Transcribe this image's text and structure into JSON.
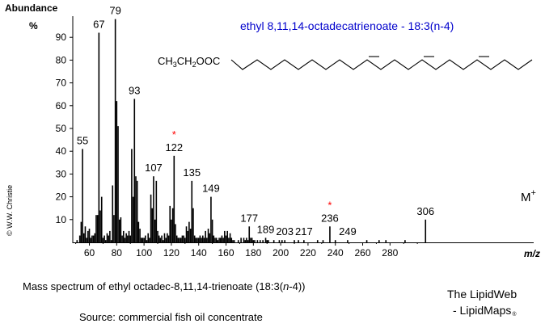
{
  "chart_data": {
    "type": "bar",
    "title": "ethyl 8,11,14-octadecatrienoate - 18:3(n-4)",
    "ylabel": "Abundance",
    "y_unit": "%",
    "xlabel": "m/z",
    "xlim": [
      45,
      310
    ],
    "ylim": [
      0,
      100
    ],
    "x_ticks": [
      60,
      80,
      100,
      120,
      140,
      160,
      180,
      200,
      220,
      240,
      260,
      280
    ],
    "y_ticks": [
      10,
      20,
      30,
      40,
      50,
      60,
      70,
      80,
      90
    ],
    "structure_label": "CH3CH2OOC",
    "molecular_ion_label": "M+",
    "peaks": [
      {
        "mz": 51,
        "y": 1
      },
      {
        "mz": 53,
        "y": 3
      },
      {
        "mz": 54,
        "y": 9
      },
      {
        "mz": 55,
        "y": 41,
        "label": "55"
      },
      {
        "mz": 56,
        "y": 4
      },
      {
        "mz": 57,
        "y": 7
      },
      {
        "mz": 58,
        "y": 2
      },
      {
        "mz": 59,
        "y": 5
      },
      {
        "mz": 60,
        "y": 6
      },
      {
        "mz": 61,
        "y": 2
      },
      {
        "mz": 62,
        "y": 3
      },
      {
        "mz": 63,
        "y": 3
      },
      {
        "mz": 64,
        "y": 4
      },
      {
        "mz": 65,
        "y": 12
      },
      {
        "mz": 66,
        "y": 12
      },
      {
        "mz": 67,
        "y": 92,
        "label": "67"
      },
      {
        "mz": 68,
        "y": 14
      },
      {
        "mz": 69,
        "y": 20
      },
      {
        "mz": 70,
        "y": 2
      },
      {
        "mz": 71,
        "y": 3
      },
      {
        "mz": 72,
        "y": 1
      },
      {
        "mz": 73,
        "y": 4
      },
      {
        "mz": 74,
        "y": 3
      },
      {
        "mz": 75,
        "y": 5
      },
      {
        "mz": 76,
        "y": 1
      },
      {
        "mz": 77,
        "y": 25
      },
      {
        "mz": 78,
        "y": 12
      },
      {
        "mz": 79,
        "y": 98,
        "label": "79"
      },
      {
        "mz": 80,
        "y": 62
      },
      {
        "mz": 81,
        "y": 51
      },
      {
        "mz": 82,
        "y": 10
      },
      {
        "mz": 83,
        "y": 11
      },
      {
        "mz": 84,
        "y": 3
      },
      {
        "mz": 85,
        "y": 5
      },
      {
        "mz": 86,
        "y": 2
      },
      {
        "mz": 87,
        "y": 4
      },
      {
        "mz": 88,
        "y": 3
      },
      {
        "mz": 89,
        "y": 5
      },
      {
        "mz": 90,
        "y": 3
      },
      {
        "mz": 91,
        "y": 41
      },
      {
        "mz": 92,
        "y": 20
      },
      {
        "mz": 93,
        "y": 63,
        "label": "93"
      },
      {
        "mz": 94,
        "y": 29
      },
      {
        "mz": 95,
        "y": 27
      },
      {
        "mz": 96,
        "y": 9
      },
      {
        "mz": 97,
        "y": 6
      },
      {
        "mz": 98,
        "y": 2
      },
      {
        "mz": 99,
        "y": 2
      },
      {
        "mz": 100,
        "y": 2
      },
      {
        "mz": 101,
        "y": 3
      },
      {
        "mz": 102,
        "y": 1
      },
      {
        "mz": 103,
        "y": 4
      },
      {
        "mz": 104,
        "y": 2
      },
      {
        "mz": 105,
        "y": 21
      },
      {
        "mz": 106,
        "y": 15
      },
      {
        "mz": 107,
        "y": 29,
        "label": "107"
      },
      {
        "mz": 108,
        "y": 10
      },
      {
        "mz": 109,
        "y": 27
      },
      {
        "mz": 110,
        "y": 5
      },
      {
        "mz": 111,
        "y": 3
      },
      {
        "mz": 112,
        "y": 2
      },
      {
        "mz": 113,
        "y": 3
      },
      {
        "mz": 114,
        "y": 1
      },
      {
        "mz": 115,
        "y": 4
      },
      {
        "mz": 116,
        "y": 2
      },
      {
        "mz": 117,
        "y": 4
      },
      {
        "mz": 118,
        "y": 3
      },
      {
        "mz": 119,
        "y": 16
      },
      {
        "mz": 120,
        "y": 10
      },
      {
        "mz": 121,
        "y": 15
      },
      {
        "mz": 122,
        "y": 38,
        "label": "122",
        "marked": true
      },
      {
        "mz": 123,
        "y": 8
      },
      {
        "mz": 124,
        "y": 3
      },
      {
        "mz": 125,
        "y": 2
      },
      {
        "mz": 126,
        "y": 2
      },
      {
        "mz": 127,
        "y": 2
      },
      {
        "mz": 128,
        "y": 3
      },
      {
        "mz": 129,
        "y": 3
      },
      {
        "mz": 130,
        "y": 2
      },
      {
        "mz": 131,
        "y": 7
      },
      {
        "mz": 132,
        "y": 5
      },
      {
        "mz": 133,
        "y": 9
      },
      {
        "mz": 134,
        "y": 6
      },
      {
        "mz": 135,
        "y": 27,
        "label": "135"
      },
      {
        "mz": 136,
        "y": 15
      },
      {
        "mz": 137,
        "y": 3
      },
      {
        "mz": 138,
        "y": 2
      },
      {
        "mz": 139,
        "y": 2
      },
      {
        "mz": 140,
        "y": 2
      },
      {
        "mz": 141,
        "y": 3
      },
      {
        "mz": 142,
        "y": 2
      },
      {
        "mz": 143,
        "y": 3
      },
      {
        "mz": 144,
        "y": 2
      },
      {
        "mz": 145,
        "y": 5
      },
      {
        "mz": 146,
        "y": 2
      },
      {
        "mz": 147,
        "y": 6
      },
      {
        "mz": 148,
        "y": 4
      },
      {
        "mz": 149,
        "y": 20,
        "label": "149"
      },
      {
        "mz": 150,
        "y": 10
      },
      {
        "mz": 151,
        "y": 3
      },
      {
        "mz": 152,
        "y": 2
      },
      {
        "mz": 153,
        "y": 2
      },
      {
        "mz": 154,
        "y": 1
      },
      {
        "mz": 155,
        "y": 2
      },
      {
        "mz": 156,
        "y": 2
      },
      {
        "mz": 157,
        "y": 3
      },
      {
        "mz": 158,
        "y": 2
      },
      {
        "mz": 159,
        "y": 5
      },
      {
        "mz": 160,
        "y": 3
      },
      {
        "mz": 161,
        "y": 5
      },
      {
        "mz": 162,
        "y": 2
      },
      {
        "mz": 163,
        "y": 4
      },
      {
        "mz": 164,
        "y": 2
      },
      {
        "mz": 165,
        "y": 1
      },
      {
        "mz": 166,
        "y": 1
      },
      {
        "mz": 169,
        "y": 1
      },
      {
        "mz": 171,
        "y": 2
      },
      {
        "mz": 173,
        "y": 2
      },
      {
        "mz": 174,
        "y": 1
      },
      {
        "mz": 175,
        "y": 2
      },
      {
        "mz": 176,
        "y": 1
      },
      {
        "mz": 177,
        "y": 7,
        "label": "177"
      },
      {
        "mz": 178,
        "y": 2
      },
      {
        "mz": 179,
        "y": 2
      },
      {
        "mz": 180,
        "y": 1
      },
      {
        "mz": 181,
        "y": 1
      },
      {
        "mz": 183,
        "y": 1
      },
      {
        "mz": 185,
        "y": 1
      },
      {
        "mz": 187,
        "y": 1
      },
      {
        "mz": 189,
        "y": 2,
        "label": "189"
      },
      {
        "mz": 190,
        "y": 1
      },
      {
        "mz": 191,
        "y": 1
      },
      {
        "mz": 195,
        "y": 1
      },
      {
        "mz": 199,
        "y": 1
      },
      {
        "mz": 201,
        "y": 1
      },
      {
        "mz": 203,
        "y": 1,
        "label": "203"
      },
      {
        "mz": 210,
        "y": 1
      },
      {
        "mz": 213,
        "y": 1
      },
      {
        "mz": 217,
        "y": 1,
        "label": "217"
      },
      {
        "mz": 227,
        "y": 1
      },
      {
        "mz": 231,
        "y": 1
      },
      {
        "mz": 236,
        "y": 7,
        "label": "236",
        "marked": true
      },
      {
        "mz": 240,
        "y": 1
      },
      {
        "mz": 249,
        "y": 1,
        "label": "249"
      },
      {
        "mz": 263,
        "y": 1
      },
      {
        "mz": 272,
        "y": 1
      },
      {
        "mz": 277,
        "y": 1
      },
      {
        "mz": 291,
        "y": 1
      },
      {
        "mz": 306,
        "y": 10,
        "label": "306"
      }
    ],
    "marker_symbol": "*",
    "marker_color": "#ff0000",
    "title_color": "#0000cc",
    "grid": false,
    "legend": "none"
  },
  "caption": "Mass spectrum of ethyl octadec-8,11,14-trienoate",
  "caption_tail_open": "(18:3(",
  "caption_tail_n": "n",
  "caption_tail_close": "-4))",
  "source": "Source: commercial fish oil concentrate",
  "brand_line1": "The LipidWeb",
  "brand_line2": "- LipidMaps",
  "brand_mark": "®",
  "copyright": "© W.W. Christie"
}
